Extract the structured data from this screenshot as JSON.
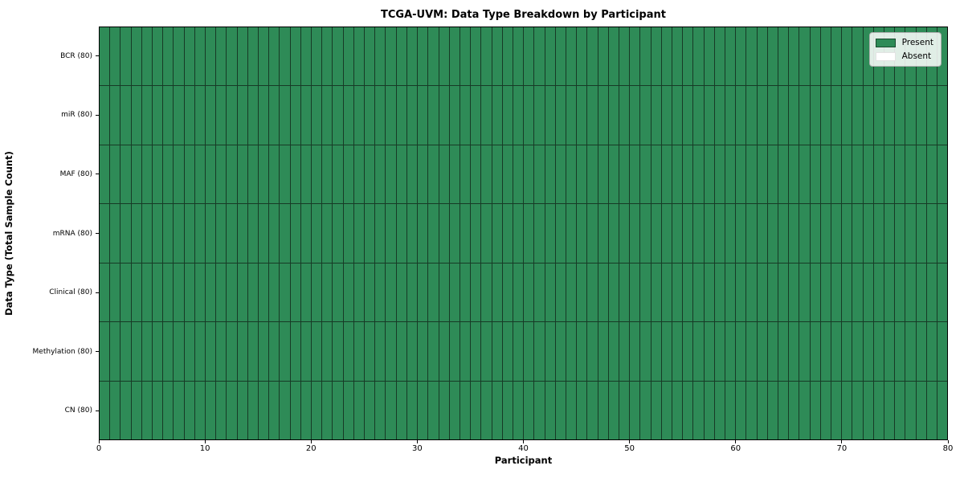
{
  "chart_data": {
    "type": "heatmap",
    "title": "TCGA-UVM: Data Type Breakdown by Participant",
    "xlabel": "Participant",
    "ylabel": "Data Type (Total Sample Count)",
    "xlim": [
      0,
      80
    ],
    "x_ticks": [
      0,
      10,
      20,
      30,
      40,
      50,
      60,
      70,
      80
    ],
    "n_participants": 80,
    "rows": [
      {
        "label": "BCR (80)",
        "present_count": 80,
        "absent_count": 0
      },
      {
        "label": "miR (80)",
        "present_count": 80,
        "absent_count": 0
      },
      {
        "label": "MAF (80)",
        "present_count": 80,
        "absent_count": 0
      },
      {
        "label": "mRNA (80)",
        "present_count": 80,
        "absent_count": 0
      },
      {
        "label": "Clinical (80)",
        "present_count": 80,
        "absent_count": 0
      },
      {
        "label": "Methylation (80)",
        "present_count": 80,
        "absent_count": 0
      },
      {
        "label": "CN (80)",
        "present_count": 80,
        "absent_count": 0
      }
    ],
    "legend": [
      {
        "label": "Present",
        "color": "#2e8b57"
      },
      {
        "label": "Absent",
        "color": "#ffffff"
      }
    ],
    "colors": {
      "present": "#2e8b57",
      "absent": "#ffffff",
      "cell_edge": "#173a26",
      "spine": "#000000"
    },
    "legend_position": "upper right",
    "grid": "cell-edges"
  }
}
